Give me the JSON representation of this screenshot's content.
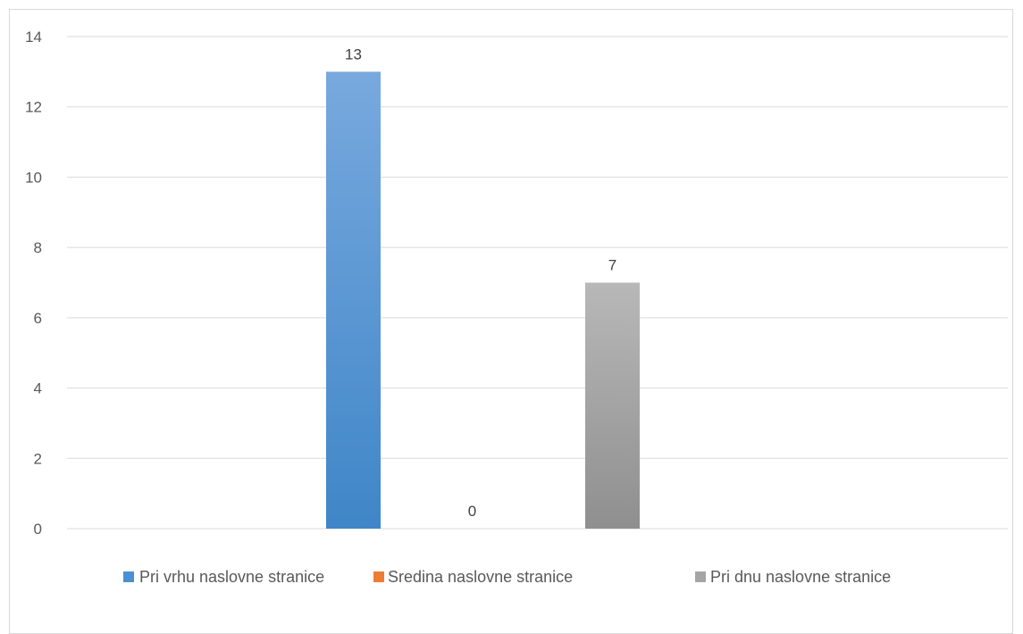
{
  "chart_data": {
    "type": "bar",
    "categories": [
      ""
    ],
    "series": [
      {
        "name": "Pri vrhu naslovne stranice",
        "values": [
          13
        ],
        "color": "#4a8fd4"
      },
      {
        "name": "Sredina naslovne stranice",
        "values": [
          0
        ],
        "color": "#ed7d31"
      },
      {
        "name": "Pri dnu naslovne stranice",
        "values": [
          7
        ],
        "color": "#a5a5a5"
      }
    ],
    "data_labels": [
      "13",
      "0",
      "7"
    ],
    "yticks": [
      "0",
      "2",
      "4",
      "6",
      "8",
      "10",
      "12",
      "14"
    ],
    "ylim": [
      0,
      14
    ],
    "grid": true,
    "legend_position": "bottom",
    "title": "",
    "xlabel": "",
    "ylabel": ""
  }
}
